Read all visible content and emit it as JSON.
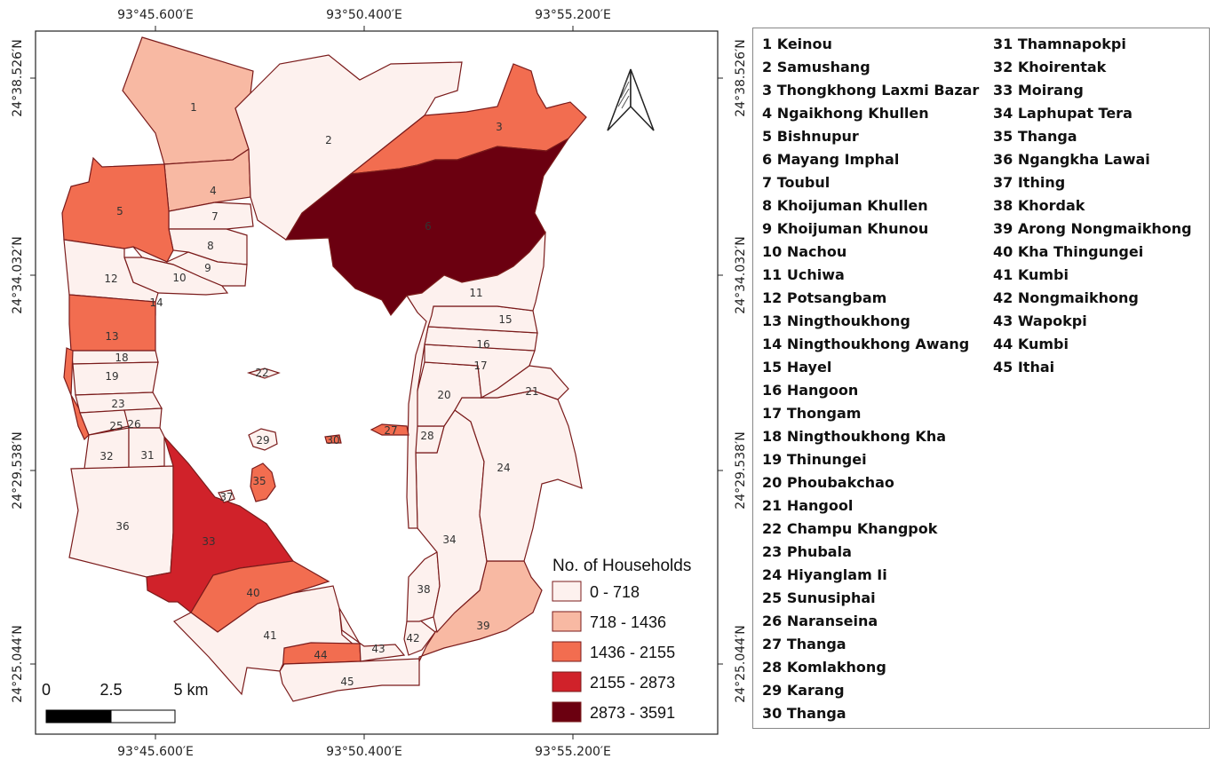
{
  "map": {
    "coordinates": {
      "lon_top": [
        "93°45.600′E",
        "93°50.400′E",
        "93°55.200′E"
      ],
      "lon_bottom": [
        "93°45.600′E",
        "93°50.400′E",
        "93°55.200′E"
      ],
      "lat_left": [
        "24°38.526′N",
        "24°34.032′N",
        "24°29.538′N",
        "24°25.044′N"
      ],
      "lat_right": [
        "24°38.526′N",
        "24°34.032′N",
        "24°29.538′N",
        "24°25.044′N"
      ]
    },
    "legend": {
      "title": "No. of Households",
      "classes": [
        {
          "label": "0 - 718",
          "color": "#fdf1ee"
        },
        {
          "label": "718 - 1436",
          "color": "#f8b9a3"
        },
        {
          "label": "1436 - 2155",
          "color": "#f26d50"
        },
        {
          "label": "2155 - 2873",
          "color": "#d0222a"
        },
        {
          "label": "2873 - 3591",
          "color": "#6b0010"
        }
      ]
    },
    "scale_bar": {
      "labels": [
        "0",
        "2.5",
        "5 km"
      ]
    },
    "north_arrow": {
      "icon": "north-arrow-icon"
    },
    "regions": [
      {
        "id": "1",
        "cls": 1
      },
      {
        "id": "2",
        "cls": 0
      },
      {
        "id": "3",
        "cls": 2
      },
      {
        "id": "4",
        "cls": 1
      },
      {
        "id": "5",
        "cls": 2
      },
      {
        "id": "6",
        "cls": 4
      },
      {
        "id": "7",
        "cls": 0
      },
      {
        "id": "8",
        "cls": 0
      },
      {
        "id": "9",
        "cls": 0
      },
      {
        "id": "10",
        "cls": 0
      },
      {
        "id": "11",
        "cls": 0
      },
      {
        "id": "12",
        "cls": 0
      },
      {
        "id": "13",
        "cls": 2
      },
      {
        "id": "14",
        "cls": 0
      },
      {
        "id": "15",
        "cls": 0
      },
      {
        "id": "16",
        "cls": 0
      },
      {
        "id": "17",
        "cls": 0
      },
      {
        "id": "18",
        "cls": 0
      },
      {
        "id": "19",
        "cls": 0
      },
      {
        "id": "20",
        "cls": 0
      },
      {
        "id": "21",
        "cls": 0
      },
      {
        "id": "22",
        "cls": 0
      },
      {
        "id": "23",
        "cls": 0
      },
      {
        "id": "24",
        "cls": 0
      },
      {
        "id": "25",
        "cls": 0
      },
      {
        "id": "26",
        "cls": 0
      },
      {
        "id": "27",
        "cls": 2
      },
      {
        "id": "28",
        "cls": 0
      },
      {
        "id": "29",
        "cls": 0
      },
      {
        "id": "30",
        "cls": 2
      },
      {
        "id": "31",
        "cls": 0
      },
      {
        "id": "32",
        "cls": 0
      },
      {
        "id": "33",
        "cls": 3
      },
      {
        "id": "34",
        "cls": 0
      },
      {
        "id": "35",
        "cls": 2
      },
      {
        "id": "36",
        "cls": 0
      },
      {
        "id": "37",
        "cls": 0
      },
      {
        "id": "38",
        "cls": 0
      },
      {
        "id": "39",
        "cls": 1
      },
      {
        "id": "40",
        "cls": 2
      },
      {
        "id": "41",
        "cls": 0
      },
      {
        "id": "42",
        "cls": 0
      },
      {
        "id": "43",
        "cls": 0
      },
      {
        "id": "44",
        "cls": 2
      },
      {
        "id": "45",
        "cls": 0
      },
      {
        "id": "edge",
        "cls": 2
      }
    ]
  },
  "key": {
    "col1": [
      "1 Keinou",
      "2 Samushang",
      "3 Thongkhong Laxmi Bazar",
      "4 Ngaikhong Khullen",
      "5 Bishnupur",
      "6 Mayang Imphal",
      "7 Toubul",
      "8 Khoijuman Khullen",
      "9 Khoijuman Khunou",
      "10 Nachou",
      "11 Uchiwa",
      "12 Potsangbam",
      "13 Ningthoukhong",
      "14 Ningthoukhong Awang",
      "15 Hayel",
      "16 Hangoon",
      "17 Thongam",
      "18 Ningthoukhong Kha",
      "19 Thinungei",
      "20 Phoubakchao",
      "21 Hangool",
      "22 Champu Khangpok",
      "23 Phubala",
      "24 Hiyanglam Ii",
      "25 Sunusiphai",
      "26 Naranseina",
      "27 Thanga",
      "28 Komlakhong",
      "29 Karang",
      "30 Thanga"
    ],
    "col2": [
      "31 Thamnapokpi",
      "32 Khoirentak",
      "33 Moirang",
      "34 Laphupat Tera",
      "35 Thanga",
      "36 Ngangkha Lawai",
      "37 Ithing",
      "38 Khordak",
      "39 Arong Nongmaikhong",
      "40 Kha Thingungei",
      "41 Kumbi",
      "42 Nongmaikhong",
      "43 Wapokpi",
      "44 Kumbi",
      "45 Ithai"
    ]
  }
}
